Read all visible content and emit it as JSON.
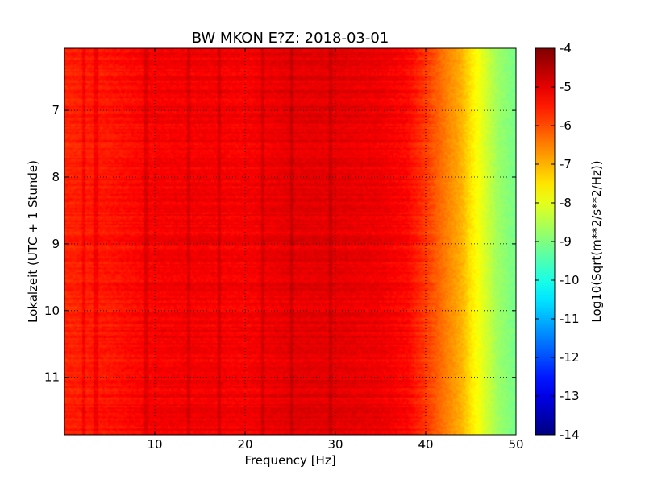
{
  "chart_data": {
    "type": "heatmap",
    "title": "BW MKON E?Z: 2018-03-01",
    "xlabel": "Frequency [Hz]",
    "ylabel": "Lokalzeit (UTC + 1 Stunde)",
    "xlim": [
      0,
      50
    ],
    "ylim": [
      6.07,
      11.86
    ],
    "x_ticks": [
      "10",
      "20",
      "30",
      "40",
      "50"
    ],
    "y_ticks": [
      "7",
      "8",
      "9",
      "10",
      "11"
    ],
    "y_inverted": true,
    "grid": true,
    "colorbar": {
      "label": "Log10(Sqrt(m**2/s**2/Hz))",
      "range": [
        -14,
        -4
      ],
      "ticks": [
        "-4",
        "-5",
        "-6",
        "-7",
        "-8",
        "-9",
        "-10",
        "-11",
        "-12",
        "-13",
        "-14"
      ],
      "colormap": "jet"
    },
    "level_profile": {
      "frequency_hz": [
        0,
        5,
        10,
        15,
        20,
        25,
        30,
        35,
        38,
        40,
        42,
        44,
        45,
        46,
        47,
        48,
        50
      ],
      "log10_amplitude": [
        -5.6,
        -5.45,
        -5.2,
        -5.15,
        -5.2,
        -5.0,
        -5.0,
        -5.1,
        -5.3,
        -5.8,
        -6.4,
        -7.0,
        -7.5,
        -7.9,
        -8.3,
        -8.7,
        -9.1
      ]
    },
    "bright_lines_hz": [
      2.2,
      3.5,
      9.0,
      13.8,
      17.2,
      22.0,
      25.2,
      29.5
    ]
  }
}
